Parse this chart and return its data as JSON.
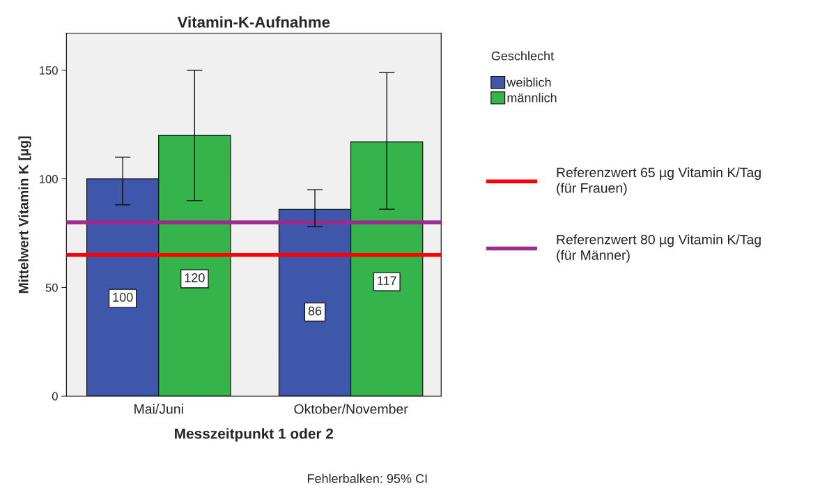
{
  "chart_data": {
    "type": "bar",
    "title": "Vitamin-K-Aufnahme",
    "xlabel": "Messzeitpunkt 1 oder 2",
    "ylabel": "Mittelwert Vitamin K [µg]",
    "legend_title": "Geschlecht",
    "categories": [
      "Mai/Juni",
      "Oktober/November"
    ],
    "series": [
      {
        "name": "weiblich",
        "color": "#3f57ab",
        "values": [
          100,
          86
        ],
        "errors": [
          [
            88,
            110
          ],
          [
            78,
            95
          ]
        ]
      },
      {
        "name": "männlich",
        "color": "#35b44a",
        "values": [
          120,
          117
        ],
        "errors": [
          [
            90,
            150
          ],
          [
            86,
            149
          ]
        ]
      }
    ],
    "ylim": [
      0,
      167
    ],
    "yticks": [
      0,
      50,
      100,
      150
    ],
    "grid": false,
    "legend": "right",
    "data_labels": true,
    "ref_lines": [
      {
        "axis": "y",
        "value": 65,
        "label": "Referenzwert 65 µg Vitamin K/Tag\n(für Frauen)",
        "color": "#ff0000",
        "line_style": "solid"
      },
      {
        "axis": "y",
        "value": 80,
        "label": "Referenzwert 80 µg Vitamin K/Tag\n(für Männer)",
        "color": "#9c2b8e",
        "line_style": "solid"
      }
    ],
    "annotations": [
      "Fehlerbalken: 95% CI"
    ]
  }
}
